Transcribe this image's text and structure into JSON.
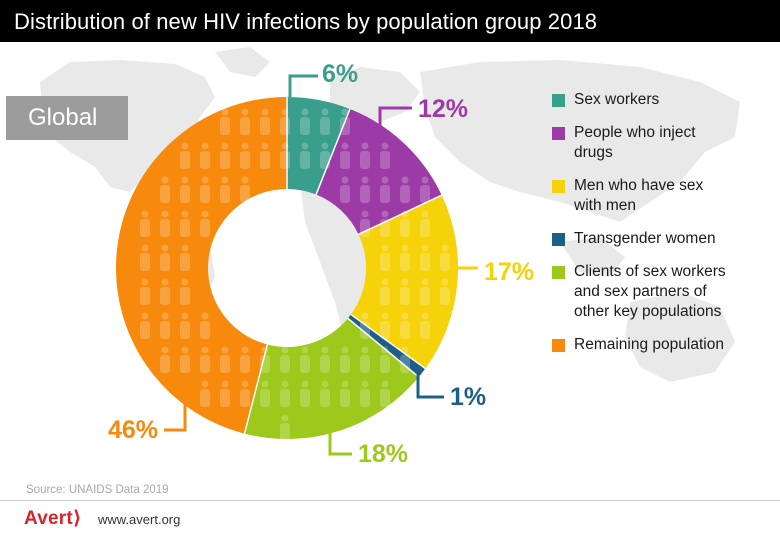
{
  "header": {
    "title": "Distribution of new HIV infections by population group 2018"
  },
  "badge": {
    "label": "Global"
  },
  "source": "Source: UNAIDS Data 2019",
  "footer": {
    "logo": "Avert⟩",
    "url": "www.avert.org"
  },
  "colors": {
    "header_bg": "#000000",
    "badge_bg": "#9c9c9c",
    "map_gray": "#e9e9e9",
    "brand_red": "#d6242b"
  },
  "chart_data": {
    "type": "pie",
    "donut": true,
    "title": "Distribution of new HIV infections by population group 2018",
    "categories": [
      "Sex workers",
      "People who inject drugs",
      "Men who have sex with men",
      "Transgender women",
      "Clients of sex workers and sex partners of other key populations",
      "Remaining population"
    ],
    "values": [
      6,
      12,
      17,
      1,
      18,
      46
    ],
    "value_labels": [
      "6%",
      "12%",
      "17%",
      "1%",
      "18%",
      "46%"
    ],
    "legend_labels": [
      [
        "Sex workers"
      ],
      [
        "People who inject",
        "drugs"
      ],
      [
        "Men who have sex",
        "with men"
      ],
      [
        "Transgender women"
      ],
      [
        "Clients of sex workers",
        "and sex partners of",
        "other key populations"
      ],
      [
        "Remaining population"
      ]
    ],
    "colors": [
      "#3a9e8c",
      "#9c3aa6",
      "#f5d20a",
      "#1f5f87",
      "#9dc81c",
      "#f78a0c"
    ],
    "legend_position": "right"
  }
}
